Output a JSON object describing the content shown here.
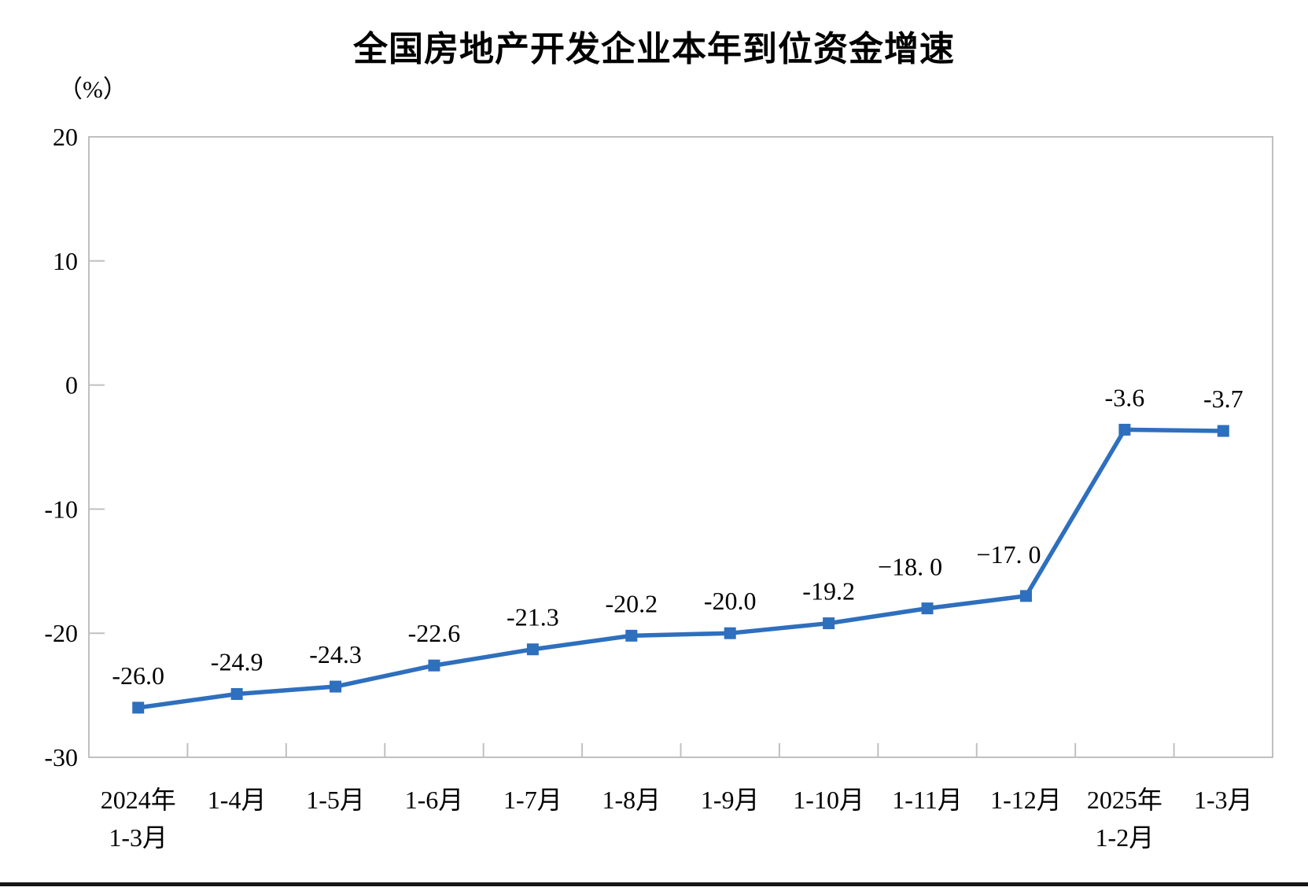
{
  "page": {
    "title": "全国房地产开发企业本年到位资金增速",
    "y_axis_unit": "（%）"
  },
  "chart_data": {
    "type": "line",
    "title": "全国房地产开发企业本年到位资金增速",
    "ylabel": "（%）",
    "categories": [
      [
        "2024年",
        "1-3月"
      ],
      [
        "1-4月"
      ],
      [
        "1-5月"
      ],
      [
        "1-6月"
      ],
      [
        "1-7月"
      ],
      [
        "1-8月"
      ],
      [
        "1-9月"
      ],
      [
        "1-10月"
      ],
      [
        "1-11月"
      ],
      [
        "1-12月"
      ],
      [
        "2025年",
        "1-2月"
      ],
      [
        "1-3月"
      ]
    ],
    "values": [
      -26.0,
      -24.9,
      -24.3,
      -22.6,
      -21.3,
      -20.2,
      -20.0,
      -19.2,
      -18.0,
      -17.0,
      -3.6,
      -3.7
    ],
    "point_labels": [
      "-26.0",
      "-24.9",
      "-24.3",
      "-22.6",
      "-21.3",
      "-20.2",
      "-20.0",
      "-19.2",
      "−18. 0",
      "−17. 0",
      "-3.6",
      "-3.7"
    ],
    "y_ticks": [
      20,
      10,
      0,
      -10,
      -20,
      -30
    ],
    "ylim": [
      -30,
      20
    ],
    "grid": false,
    "legend_position": "none",
    "marker": "square",
    "colors": {
      "line": "#2E6FBE",
      "axis": "#C0C0C0",
      "text": "#000000"
    }
  }
}
